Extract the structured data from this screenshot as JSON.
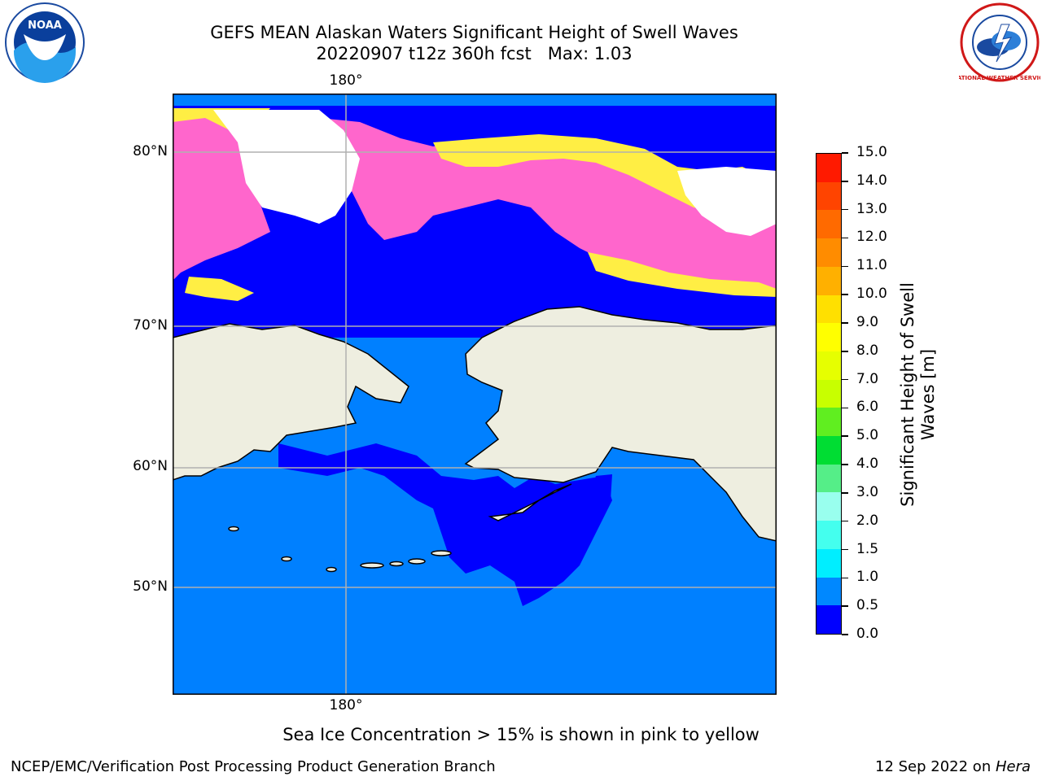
{
  "header": {
    "title_line1": "GEFS MEAN Alaskan Waters Significant Height of Swell Waves",
    "title_line2": "20220907 t12z 360h fcst   Max: 1.03"
  },
  "logos": {
    "left": "NOAA",
    "right": "NATIONAL WEATHER SERVICE"
  },
  "map": {
    "lon_label_top": "180°",
    "lon_label_bottom": "180°",
    "lat_labels": [
      "80°N",
      "70°N",
      "60°N",
      "50°N"
    ],
    "colors": {
      "land": "#eeeee0",
      "ice_free_open": "#0000ff",
      "swell_0_5_1": "#0080ff",
      "sea_ice_pink": "#ff66cc",
      "sea_ice_yellow": "#ffee44",
      "cyan": "#00e5ff"
    }
  },
  "colorbar": {
    "ticks": [
      "15.0",
      "14.0",
      "13.0",
      "12.0",
      "11.0",
      "10.0",
      "9.0",
      "8.0",
      "7.0",
      "6.0",
      "5.0",
      "4.0",
      "3.0",
      "2.0",
      "1.5",
      "1.0",
      "0.5",
      "0.0"
    ],
    "colors": [
      "#ff1a00",
      "#ff4400",
      "#ff6a00",
      "#ff8c00",
      "#ffb000",
      "#ffe000",
      "#ffff00",
      "#e6ff00",
      "#c8ff00",
      "#60ee20",
      "#00dd33",
      "#55ee88",
      "#99ffee",
      "#44ffee",
      "#00eeff",
      "#0088ff",
      "#0000ff"
    ],
    "label_line1": "Significant Height of Swell",
    "label_line2": "Waves [m]"
  },
  "footer": {
    "ice_note": "Sea Ice Concentration > 15% is shown in pink to yellow",
    "credit_left": "NCEP/EMC/Verification Post Processing Product Generation Branch",
    "credit_right_date": "12 Sep 2022 on ",
    "credit_right_host": "Hera"
  }
}
